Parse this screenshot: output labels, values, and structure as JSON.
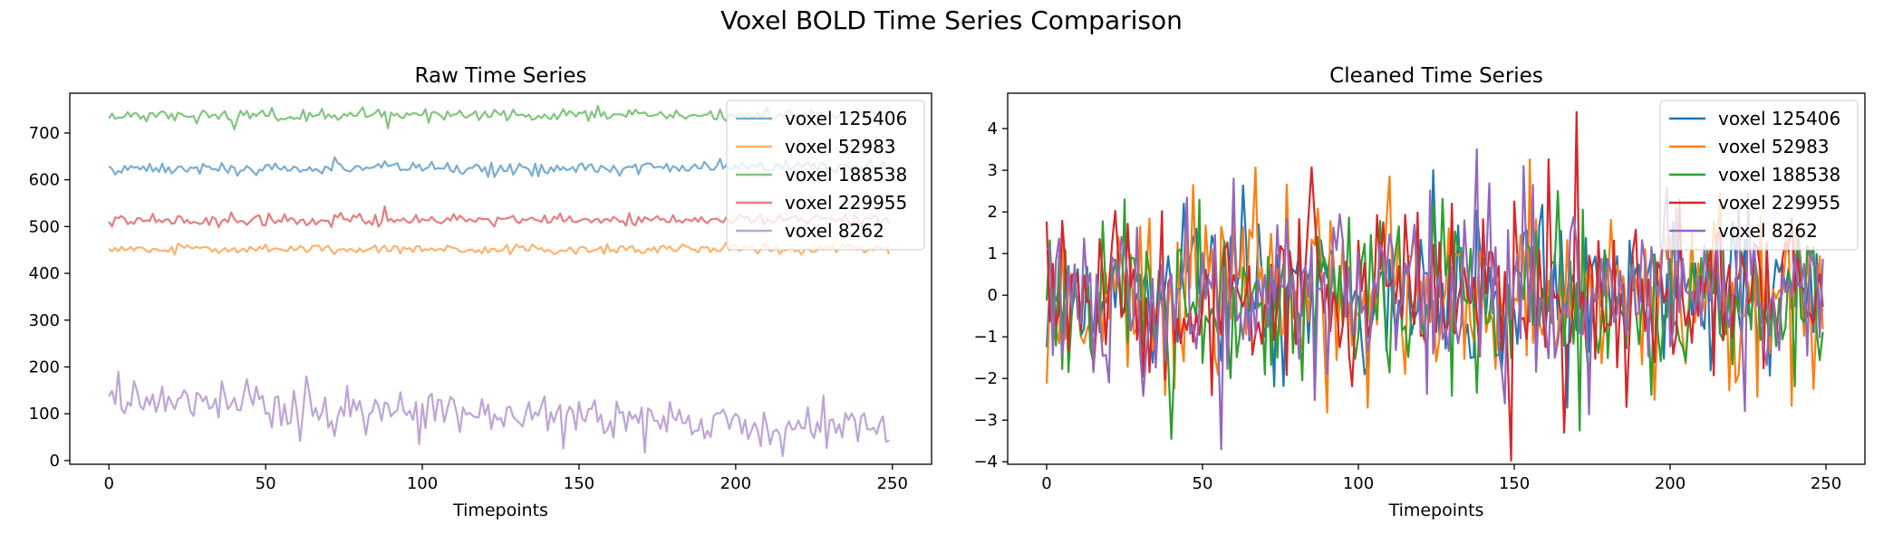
{
  "figure": {
    "title": "Voxel BOLD Time Series Comparison"
  },
  "colors": {
    "voxel_125406": "#1f77b4",
    "voxel_52983": "#ff7f0e",
    "voxel_188538": "#2ca02c",
    "voxel_229955": "#d62728",
    "voxel_8262": "#9467bd"
  },
  "chart_data": [
    {
      "type": "line",
      "title": "Raw Time Series",
      "xlabel": "Timepoints",
      "ylabel": "",
      "xlim": [
        -12.5,
        262.5
      ],
      "ylim": [
        -8,
        785
      ],
      "xticks": [
        0,
        50,
        100,
        150,
        200,
        250
      ],
      "yticks": [
        0,
        100,
        200,
        300,
        400,
        500,
        600,
        700
      ],
      "grid": false,
      "legend_position": "top-right",
      "n_points": 250,
      "x_start": 0,
      "series": [
        {
          "name": "voxel 125406",
          "color": "#1f77b4",
          "alpha": 0.6,
          "mean": 623,
          "sd": 7,
          "trend_end": 628,
          "spikes": [
            [
              36,
              636
            ],
            [
              88,
              640
            ],
            [
              121,
              606
            ]
          ]
        },
        {
          "name": "voxel 52983",
          "color": "#ff7f0e",
          "alpha": 0.6,
          "mean": 452,
          "sd": 5,
          "trend_end": 452,
          "spikes": [
            [
              197,
              466
            ],
            [
              249,
              441
            ]
          ]
        },
        {
          "name": "voxel 188538",
          "color": "#2ca02c",
          "alpha": 0.6,
          "mean": 736,
          "sd": 7,
          "trend_end": 740,
          "spikes": [
            [
              40,
              708
            ],
            [
              89,
              710
            ],
            [
              30,
              748
            ]
          ]
        },
        {
          "name": "voxel 229955",
          "color": "#d62728",
          "alpha": 0.6,
          "mean": 513,
          "sd": 6,
          "trend_end": 515,
          "spikes": [
            [
              88,
              543
            ],
            [
              110,
              527
            ],
            [
              123,
              500
            ]
          ]
        },
        {
          "name": "voxel 8262",
          "color": "#9467bd",
          "alpha": 0.6,
          "mean": 128,
          "sd": 25,
          "trend_end": 70,
          "spikes": [
            [
              63,
              180
            ],
            [
              61,
              42
            ],
            [
              145,
              26
            ],
            [
              150,
              125
            ],
            [
              248,
              40
            ]
          ]
        }
      ]
    },
    {
      "type": "line",
      "title": "Cleaned Time Series",
      "xlabel": "Timepoints",
      "ylabel": "",
      "xlim": [
        -12.5,
        262.5
      ],
      "ylim": [
        -4.06,
        4.85
      ],
      "xticks": [
        0,
        50,
        100,
        150,
        200,
        250
      ],
      "yticks": [
        -4,
        -3,
        -2,
        -1,
        0,
        1,
        2,
        3,
        4
      ],
      "grid": false,
      "legend_position": "top-right",
      "n_points": 250,
      "x_start": 0,
      "series": [
        {
          "name": "voxel 125406",
          "color": "#1f77b4",
          "alpha": 1.0,
          "mean": 0,
          "sd": 1.0,
          "trend_end": 0,
          "spikes": [
            [
              124,
              3.0
            ],
            [
              44,
              2.2
            ],
            [
              167,
              -2.7
            ]
          ]
        },
        {
          "name": "voxel 52983",
          "color": "#ff7f0e",
          "alpha": 1.0,
          "mean": 0,
          "sd": 1.0,
          "trend_end": 0,
          "spikes": [
            [
              110,
              2.85
            ],
            [
              38,
              -2.4
            ],
            [
              103,
              -2.7
            ],
            [
              246,
              -2.25
            ]
          ]
        },
        {
          "name": "voxel 188538",
          "color": "#2ca02c",
          "alpha": 1.0,
          "mean": 0,
          "sd": 1.0,
          "trend_end": 0,
          "spikes": [
            [
              40,
              -3.45
            ],
            [
              171,
              -3.25
            ],
            [
              25,
              2.3
            ]
          ]
        },
        {
          "name": "voxel 229955",
          "color": "#d62728",
          "alpha": 1.0,
          "mean": 0,
          "sd": 1.0,
          "trend_end": 0,
          "spikes": [
            [
              170,
              4.4
            ],
            [
              166,
              -3.3
            ],
            [
              130,
              2.2
            ]
          ]
        },
        {
          "name": "voxel 8262",
          "color": "#9467bd",
          "alpha": 1.0,
          "mean": 0,
          "sd": 1.0,
          "trend_end": 0,
          "spikes": [
            [
              153,
              3.1
            ],
            [
              56,
              -3.7
            ],
            [
              60,
              2.8
            ],
            [
              147,
              -2.6
            ]
          ]
        }
      ]
    }
  ]
}
